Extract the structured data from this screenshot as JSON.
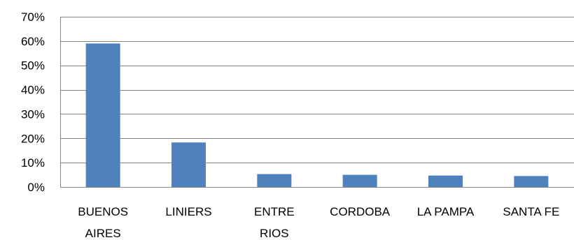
{
  "chart_data": {
    "type": "bar",
    "title": "",
    "xlabel": "",
    "ylabel": "",
    "categories": [
      "BUENOS AIRES",
      "LINIERS",
      "ENTRE RIOS",
      "CORDOBA",
      "LA PAMPA",
      "SANTA FE"
    ],
    "category_lines": [
      [
        "BUENOS",
        "AIRES"
      ],
      [
        "LINIERS"
      ],
      [
        "ENTRE",
        "RIOS"
      ],
      [
        "CORDOBA"
      ],
      [
        "LA PAMPA"
      ],
      [
        "SANTA FE"
      ]
    ],
    "values": [
      0.59,
      0.183,
      0.053,
      0.05,
      0.047,
      0.045
    ],
    "ylim": [
      0,
      0.7
    ],
    "yticks": [
      0,
      0.1,
      0.2,
      0.3,
      0.4,
      0.5,
      0.6,
      0.7
    ],
    "ytick_labels": [
      "0%",
      "10%",
      "20%",
      "30%",
      "40%",
      "50%",
      "60%",
      "70%"
    ],
    "grid": true,
    "legend": "none",
    "bar_color": "#4F81BD",
    "grid_color": "#868686"
  }
}
